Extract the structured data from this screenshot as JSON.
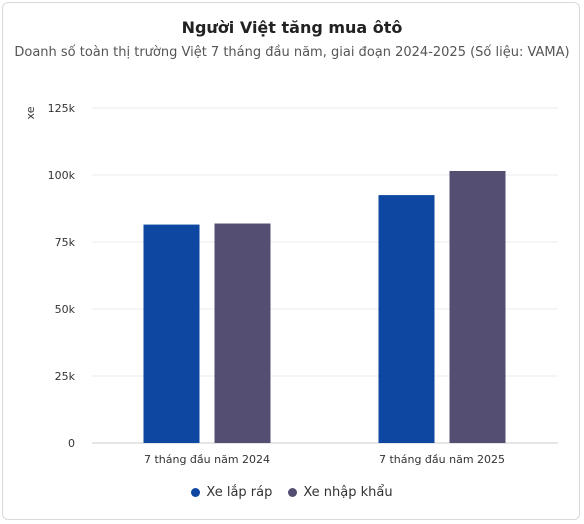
{
  "chart_data": {
    "type": "bar",
    "title": "Người Việt tăng mua ôtô",
    "subtitle": "Doanh số toàn thị trường Việt 7 tháng đầu năm, giai đoạn 2024-2025 (Số liệu: VAMA)",
    "ylabel": "xe",
    "xlabel": "",
    "categories": [
      "7 tháng đầu năm 2024",
      "7 tháng đầu năm 2025"
    ],
    "series": [
      {
        "name": "Xe lắp ráp",
        "values": [
          81500,
          92500
        ],
        "color": "#0d47a1"
      },
      {
        "name": "Xe nhập khẩu",
        "values": [
          81900,
          101500
        ],
        "color": "#544e72"
      }
    ],
    "ylim": [
      0,
      125000
    ],
    "yticks": [
      0,
      25000,
      50000,
      75000,
      100000,
      125000
    ],
    "ytick_labels": [
      "0",
      "25k",
      "50k",
      "75k",
      "100k",
      "125k"
    ],
    "grid": true,
    "legend": "bottom"
  }
}
